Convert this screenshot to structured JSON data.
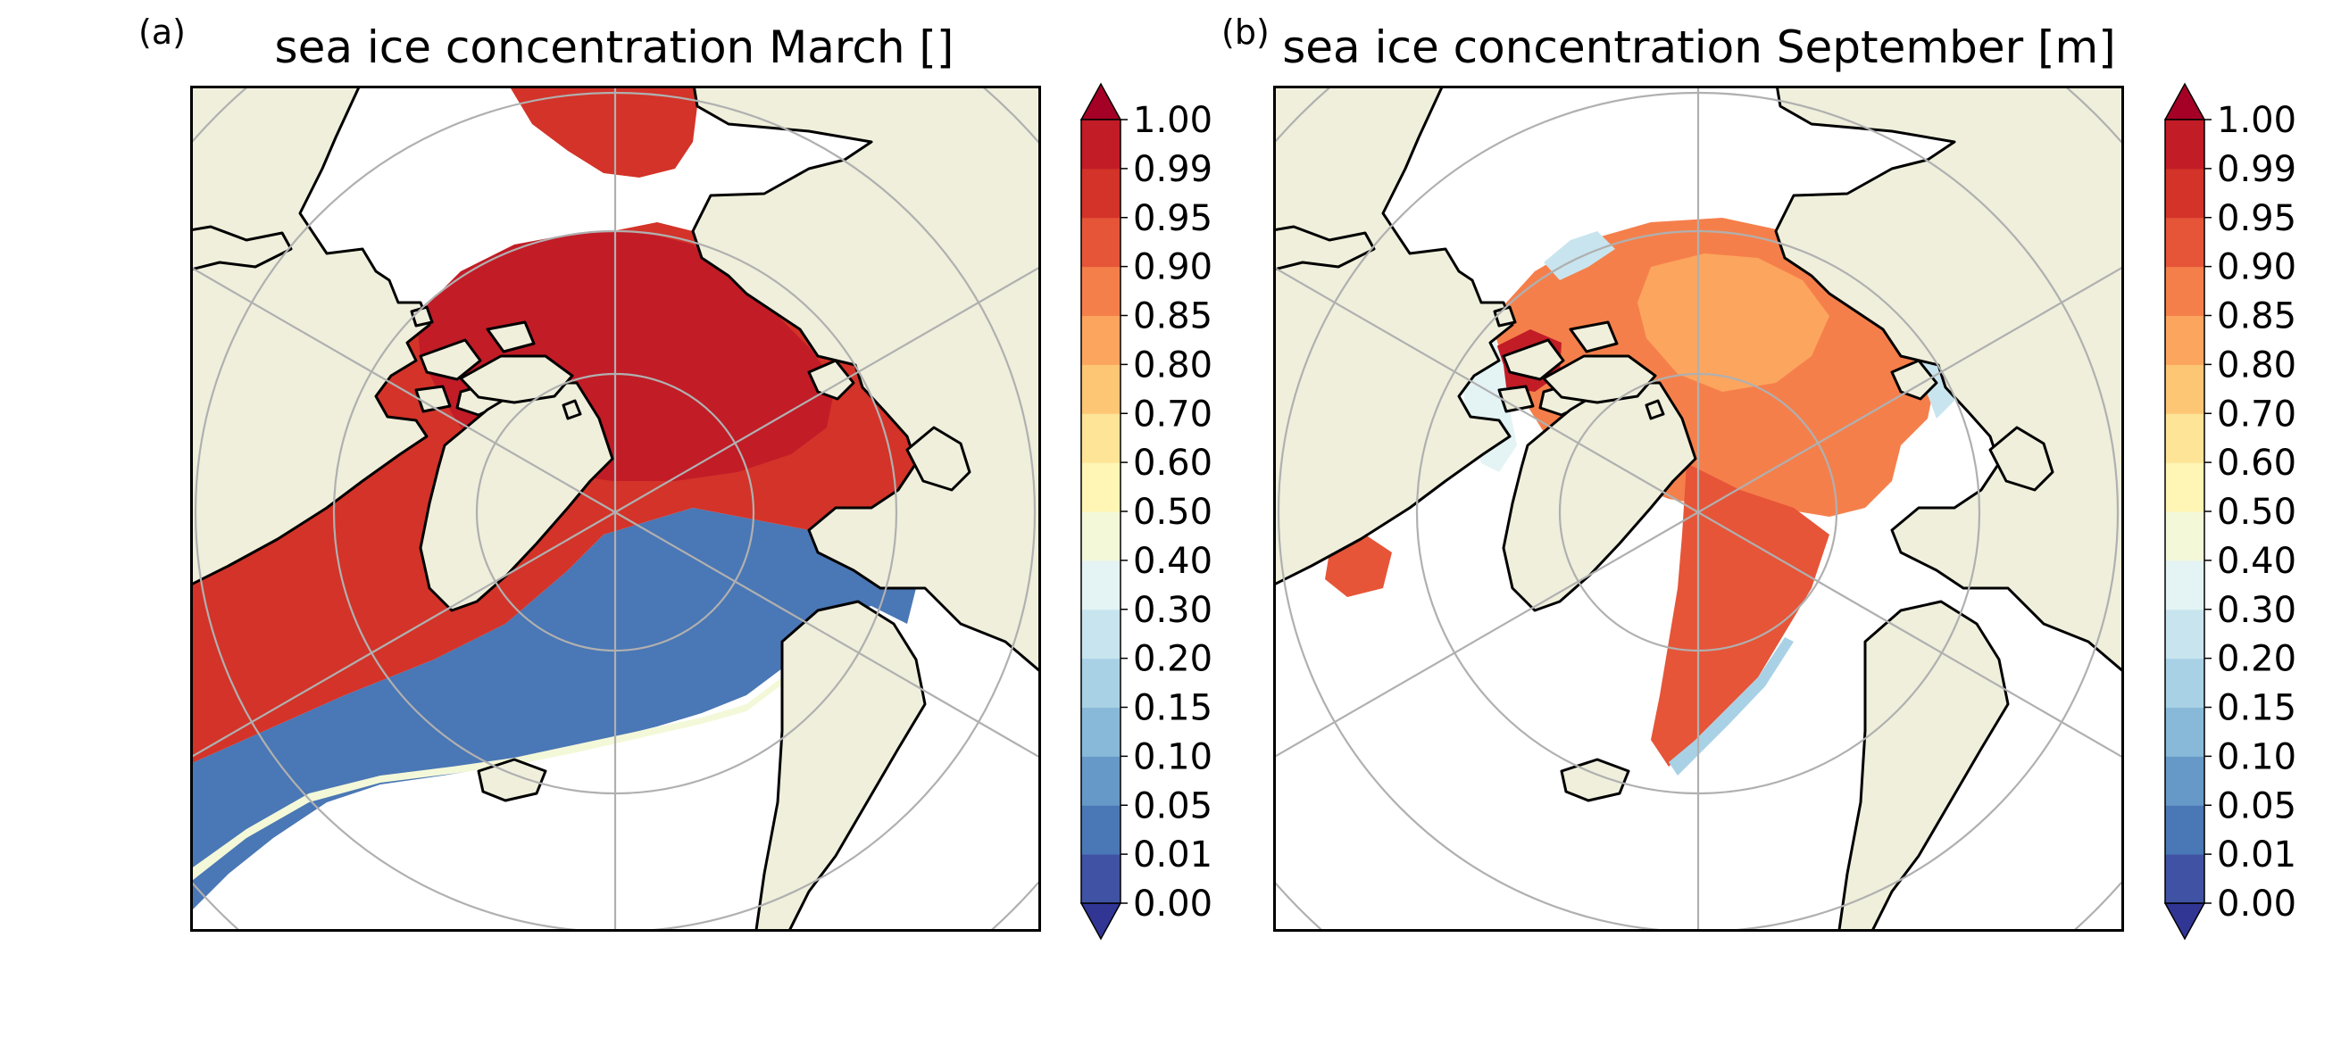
{
  "figure": {
    "panels": [
      {
        "id": "a",
        "label": "(a)",
        "title": "sea ice concentration March []",
        "month": "March"
      },
      {
        "id": "b",
        "label": "(b)",
        "title": "sea ice concentration September [m]",
        "month": "September"
      }
    ]
  },
  "colorbar": {
    "levels": [
      "0.00",
      "0.01",
      "0.05",
      "0.10",
      "0.15",
      "0.20",
      "0.30",
      "0.40",
      "0.50",
      "0.60",
      "0.70",
      "0.80",
      "0.85",
      "0.90",
      "0.95",
      "0.99",
      "1.00"
    ],
    "colors": [
      "#4052a3",
      "#4a77b5",
      "#6799c8",
      "#89b9d9",
      "#a9d1e5",
      "#c8e5ef",
      "#e4f3f4",
      "#f3f8d8",
      "#fff5b4",
      "#fee496",
      "#fdc674",
      "#fca55e",
      "#f57f4b",
      "#e65538",
      "#d33329",
      "#c21c27"
    ],
    "under_color": "#313695",
    "over_color": "#a50026",
    "extend": "both"
  },
  "map_style": {
    "land_color": "#efefdc",
    "ocean_color": "#ffffff",
    "coastline_color": "#000000",
    "gridline_color": "#b0b0b0",
    "projection": "north-polar-stereographic"
  },
  "chart_data": [
    {
      "type": "heatmap",
      "title": "sea ice concentration March []",
      "variable": "sea ice concentration",
      "month": "March",
      "value_range": [
        0.0,
        1.0
      ],
      "summary": "Ice concentration 0.99-1.00 across the central Arctic basin, 0.95-0.99 in marginal seas; ice edge with 0.00-0.50 values south of Greenland, Baffin Bay, Labrador Sea and Barents Sea"
    },
    {
      "type": "heatmap",
      "title": "sea ice concentration September [m]",
      "variable": "sea ice concentration",
      "month": "September",
      "value_range": [
        0.0,
        1.0
      ],
      "summary": "Ice concentration mostly 0.80-0.95 in the central Arctic, 0.95-1.00 in the Canadian Archipelago; edge values 0.05-0.50 along Siberian and Alaskan margins and east Greenland"
    }
  ]
}
